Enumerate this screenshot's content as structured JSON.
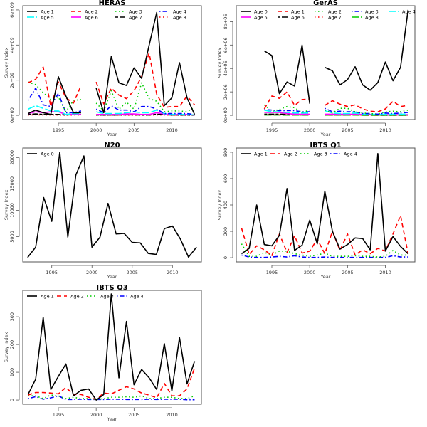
{
  "chart_data": [
    {
      "type": "line",
      "title": "HERAS",
      "xlabel": "Year",
      "ylabel": "Survey Index",
      "xlim": [
        1991,
        2013
      ],
      "ylim": [
        0,
        6000000000
      ],
      "xticks": [
        1995,
        2000,
        2005,
        2010
      ],
      "yticks": [
        0,
        2000000000,
        4000000000,
        6000000000
      ],
      "ytick_labels": [
        "0e+00",
        "2e+09",
        "4e+09",
        "6e+09"
      ],
      "legend_position": "top-left",
      "legend_columns": 4,
      "x": [
        1991,
        1992,
        1993,
        1994,
        1995,
        1996,
        1997,
        1998,
        1999,
        2000,
        2001,
        2002,
        2003,
        2004,
        2005,
        2006,
        2007,
        2008,
        2009,
        2010,
        2011,
        2012,
        2013
      ],
      "series": [
        {
          "name": "Age 1",
          "color": "#000000",
          "dash": "solid",
          "values": [
            100000000,
            300000000,
            150000000,
            50000000,
            2200000000,
            1100000000,
            150000000,
            150000000,
            null,
            1550000000,
            150000000,
            3350000000,
            1850000000,
            1700000000,
            2700000000,
            2100000000,
            4000000000,
            5850000000,
            550000000,
            1000000000,
            3000000000,
            1000000000,
            50000000
          ]
        },
        {
          "name": "Age 2",
          "color": "#ff0000",
          "dash": "dashed",
          "values": [
            1850000000,
            2050000000,
            2750000000,
            500000000,
            1900000000,
            1000000000,
            700000000,
            1700000000,
            null,
            1900000000,
            650000000,
            1550000000,
            1150000000,
            950000000,
            1400000000,
            2200000000,
            3550000000,
            1200000000,
            450000000,
            500000000,
            500000000,
            1100000000,
            600000000
          ]
        },
        {
          "name": "Age 3",
          "color": "#00cc00",
          "dash": "dotted",
          "values": [
            1900000000,
            1750000000,
            1300000000,
            900000000,
            1050000000,
            200000000,
            850000000,
            900000000,
            null,
            700000000,
            250000000,
            1400000000,
            350000000,
            750000000,
            350000000,
            1850000000,
            950000000,
            800000000,
            200000000,
            250000000,
            250000000,
            200000000,
            450000000
          ]
        },
        {
          "name": "Age 4",
          "color": "#0000ff",
          "dash": "dashdot",
          "values": [
            850000000,
            1550000000,
            600000000,
            500000000,
            1250000000,
            150000000,
            150000000,
            250000000,
            null,
            350000000,
            150000000,
            550000000,
            300000000,
            300000000,
            200000000,
            500000000,
            500000000,
            350000000,
            100000000,
            100000000,
            100000000,
            100000000,
            50000000
          ]
        },
        {
          "name": "Age 5",
          "color": "#00ffff",
          "dash": "longdash",
          "values": [
            350000000,
            550000000,
            400000000,
            250000000,
            250000000,
            50000000,
            100000000,
            100000000,
            null,
            200000000,
            100000000,
            100000000,
            100000000,
            150000000,
            200000000,
            150000000,
            150000000,
            300000000,
            100000000,
            50000000,
            50000000,
            50000000,
            20000000
          ]
        },
        {
          "name": "Age 6",
          "color": "#ff00ff",
          "dash": "solid",
          "values": [
            100000000,
            200000000,
            150000000,
            200000000,
            200000000,
            50000000,
            50000000,
            50000000,
            null,
            50000000,
            50000000,
            50000000,
            50000000,
            80000000,
            80000000,
            50000000,
            50000000,
            150000000,
            80000000,
            50000000,
            50000000,
            50000000,
            20000000
          ]
        },
        {
          "name": "Age 7",
          "color": "#000000",
          "dash": "twodash",
          "values": [
            50000000,
            80000000,
            50000000,
            50000000,
            50000000,
            20000000,
            50000000,
            50000000,
            null,
            20000000,
            20000000,
            20000000,
            20000000,
            30000000,
            30000000,
            20000000,
            20000000,
            60000000,
            50000000,
            20000000,
            20000000,
            20000000,
            10000000
          ]
        },
        {
          "name": "Age 8",
          "color": "#ff0000",
          "dash": "dotted",
          "values": [
            20000000,
            30000000,
            20000000,
            20000000,
            20000000,
            10000000,
            20000000,
            20000000,
            null,
            10000000,
            10000000,
            10000000,
            10000000,
            10000000,
            10000000,
            10000000,
            10000000,
            20000000,
            20000000,
            10000000,
            10000000,
            10000000,
            5000000
          ]
        }
      ]
    },
    {
      "type": "line",
      "title": "GerAS",
      "xlabel": "Year",
      "ylabel": "Survey Index",
      "xlim": [
        1991,
        2013
      ],
      "ylim": [
        0,
        9000000
      ],
      "xticks": [
        1995,
        2000,
        2005,
        2010
      ],
      "yticks": [
        0,
        2000000,
        4000000,
        6000000,
        8000000
      ],
      "ytick_labels": [
        "0e+00",
        "2e+06",
        "4e+06",
        "6e+06",
        "8e+06"
      ],
      "legend_position": "top-left",
      "legend_columns": 5,
      "x": [
        1994,
        1995,
        1996,
        1997,
        1998,
        1999,
        2000,
        2001,
        2002,
        2003,
        2004,
        2005,
        2006,
        2007,
        2008,
        2009,
        2010,
        2011,
        2012,
        2013
      ],
      "series": [
        {
          "name": "Age 0",
          "color": "#000000",
          "dash": "solid",
          "values": [
            5500000,
            5100000,
            1850000,
            2850000,
            2500000,
            6000000,
            1000000,
            null,
            4100000,
            3800000,
            2600000,
            3050000,
            4150000,
            2600000,
            2150000,
            2800000,
            4550000,
            2950000,
            4100000,
            9000000
          ]
        },
        {
          "name": "Age 1",
          "color": "#ff0000",
          "dash": "dashed",
          "values": [
            550000,
            1650000,
            1450000,
            2000000,
            850000,
            1350000,
            1400000,
            null,
            850000,
            1250000,
            950000,
            750000,
            900000,
            550000,
            350000,
            300000,
            550000,
            1200000,
            750000,
            850000
          ]
        },
        {
          "name": "Age 2",
          "color": "#00cc00",
          "dash": "dotted",
          "values": [
            900000,
            350000,
            500000,
            750000,
            650000,
            250000,
            450000,
            null,
            450000,
            200000,
            600000,
            600000,
            300000,
            200000,
            150000,
            100000,
            300000,
            350000,
            300000,
            450000
          ]
        },
        {
          "name": "Age 3",
          "color": "#0000ff",
          "dash": "dashdot",
          "values": [
            500000,
            450000,
            400000,
            400000,
            400000,
            300000,
            300000,
            null,
            600000,
            300000,
            350000,
            300000,
            300000,
            150000,
            150000,
            100000,
            200000,
            150000,
            200000,
            250000
          ]
        },
        {
          "name": "Age 4",
          "color": "#00ffff",
          "dash": "longdash",
          "values": [
            450000,
            300000,
            300000,
            250000,
            200000,
            200000,
            200000,
            null,
            400000,
            200000,
            150000,
            150000,
            200000,
            100000,
            100000,
            80000,
            100000,
            100000,
            100000,
            100000
          ]
        },
        {
          "name": "Age 5",
          "color": "#ff00ff",
          "dash": "solid",
          "values": [
            250000,
            250000,
            250000,
            150000,
            100000,
            100000,
            100000,
            null,
            100000,
            100000,
            100000,
            100000,
            100000,
            80000,
            80000,
            60000,
            60000,
            60000,
            60000,
            60000
          ]
        },
        {
          "name": "Age 6",
          "color": "#000000",
          "dash": "twodash",
          "values": [
            100000,
            100000,
            100000,
            80000,
            60000,
            50000,
            50000,
            null,
            50000,
            50000,
            50000,
            50000,
            80000,
            50000,
            50000,
            40000,
            40000,
            40000,
            40000,
            40000
          ]
        },
        {
          "name": "Age 7",
          "color": "#ff0000",
          "dash": "dotted",
          "values": [
            50000,
            50000,
            50000,
            40000,
            30000,
            30000,
            30000,
            null,
            30000,
            30000,
            30000,
            30000,
            30000,
            20000,
            20000,
            20000,
            20000,
            20000,
            20000,
            20000
          ]
        },
        {
          "name": "Age 8",
          "color": "#00cc00",
          "dash": "longdash",
          "values": [
            30000,
            30000,
            30000,
            20000,
            20000,
            20000,
            20000,
            null,
            20000,
            20000,
            20000,
            20000,
            20000,
            10000,
            10000,
            10000,
            10000,
            10000,
            10000,
            10000
          ]
        }
      ]
    },
    {
      "type": "line",
      "title": "N20",
      "xlabel": "Year",
      "ylabel": "Survey Index",
      "xlim": [
        1992,
        2013
      ],
      "ylim": [
        1000,
        21000
      ],
      "xticks": [
        1995,
        2000,
        2005,
        2010
      ],
      "yticks": [
        5000,
        10000,
        15000,
        20000
      ],
      "ytick_labels": [
        "5000",
        "10000",
        "15000",
        "20000"
      ],
      "legend_position": "top-left",
      "legend_columns": 1,
      "x": [
        1992,
        1993,
        1994,
        1995,
        1996,
        1997,
        1998,
        1999,
        2000,
        2001,
        2002,
        2003,
        2004,
        2005,
        2006,
        2007,
        2008,
        2009,
        2010,
        2011,
        2012,
        2013
      ],
      "series": [
        {
          "name": "Age 0",
          "color": "#000000",
          "dash": "solid",
          "values": [
            1050,
            3000,
            12400,
            7900,
            21000,
            4900,
            16700,
            20300,
            3000,
            4900,
            11300,
            5500,
            5600,
            3900,
            3800,
            1800,
            1600,
            6500,
            7000,
            4500,
            1100,
            3000
          ]
        }
      ]
    },
    {
      "type": "line",
      "title": "IBTS Q1",
      "xlabel": "Year",
      "ylabel": "Survey Index",
      "xlim": [
        1991,
        2013
      ],
      "ylim": [
        0,
        800
      ],
      "xticks": [
        1995,
        2000,
        2005,
        2010
      ],
      "yticks": [
        0,
        200,
        400,
        600,
        800
      ],
      "ytick_labels": [
        "0",
        "200",
        "400",
        "600",
        "800"
      ],
      "legend_position": "top-left",
      "legend_columns": 4,
      "x": [
        1991,
        1992,
        1993,
        1994,
        1995,
        1996,
        1997,
        1998,
        1999,
        2000,
        2001,
        2002,
        2003,
        2004,
        2005,
        2006,
        2007,
        2008,
        2009,
        2010,
        2011,
        2012,
        2013
      ],
      "series": [
        {
          "name": "Age 1",
          "color": "#000000",
          "dash": "solid",
          "values": [
            30,
            70,
            400,
            100,
            90,
            170,
            525,
            55,
            95,
            285,
            105,
            505,
            200,
            65,
            100,
            150,
            145,
            60,
            790,
            50,
            160,
            85,
            30
          ]
        },
        {
          "name": "Age 2",
          "color": "#ff0000",
          "dash": "dashed",
          "values": [
            225,
            25,
            90,
            60,
            15,
            180,
            40,
            165,
            35,
            50,
            140,
            30,
            200,
            55,
            180,
            20,
            60,
            30,
            70,
            50,
            180,
            320,
            30
          ]
        },
        {
          "name": "Age 3",
          "color": "#00cc00",
          "dash": "dotted",
          "values": [
            105,
            10,
            10,
            40,
            20,
            50,
            50,
            30,
            20,
            10,
            20,
            35,
            10,
            10,
            10,
            15,
            10,
            10,
            5,
            10,
            55,
            20,
            20
          ]
        },
        {
          "name": "Age 4",
          "color": "#0000ff",
          "dash": "dashdot",
          "values": [
            20,
            5,
            2,
            2,
            5,
            10,
            5,
            15,
            5,
            2,
            2,
            5,
            2,
            2,
            2,
            2,
            2,
            2,
            2,
            2,
            15,
            5,
            5
          ]
        }
      ]
    },
    {
      "type": "line",
      "title": "IBTS Q3",
      "xlabel": "Year",
      "ylabel": "Survey Index",
      "xlim": [
        1991,
        2013
      ],
      "ylim": [
        0,
        380
      ],
      "xticks": [
        1995,
        2000,
        2005,
        2010
      ],
      "yticks": [
        0,
        100,
        200,
        300
      ],
      "ytick_labels": [
        "0",
        "100",
        "200",
        "300"
      ],
      "legend_position": "top-left",
      "legend_columns": 4,
      "x": [
        1991,
        1992,
        1993,
        1994,
        1995,
        1996,
        1997,
        1998,
        1999,
        2000,
        2001,
        2002,
        2003,
        2004,
        2005,
        2006,
        2007,
        2008,
        2009,
        2010,
        2011,
        2012,
        2013
      ],
      "series": [
        {
          "name": "Age 1",
          "color": "#000000",
          "dash": "solid",
          "values": [
            20,
            75,
            298,
            38,
            85,
            130,
            15,
            35,
            40,
            0,
            20,
            382,
            80,
            283,
            55,
            110,
            80,
            38,
            203,
            33,
            225,
            58,
            140
          ]
        },
        {
          "name": "Age 2",
          "color": "#ff0000",
          "dash": "dashed",
          "values": [
            18,
            27,
            27,
            25,
            22,
            45,
            20,
            20,
            10,
            2,
            25,
            22,
            35,
            48,
            40,
            25,
            18,
            8,
            60,
            15,
            15,
            40,
            115
          ]
        },
        {
          "name": "Age 3",
          "color": "#00cc00",
          "dash": "dotted",
          "values": [
            15,
            15,
            5,
            18,
            15,
            5,
            10,
            5,
            5,
            2,
            5,
            10,
            10,
            12,
            10,
            15,
            5,
            5,
            10,
            10,
            5,
            5,
            15
          ]
        },
        {
          "name": "Age 4",
          "color": "#0000ff",
          "dash": "dashdot",
          "values": [
            5,
            12,
            3,
            8,
            15,
            2,
            2,
            3,
            2,
            2,
            2,
            3,
            3,
            2,
            2,
            2,
            3,
            2,
            3,
            3,
            3,
            1,
            1
          ]
        }
      ]
    }
  ]
}
